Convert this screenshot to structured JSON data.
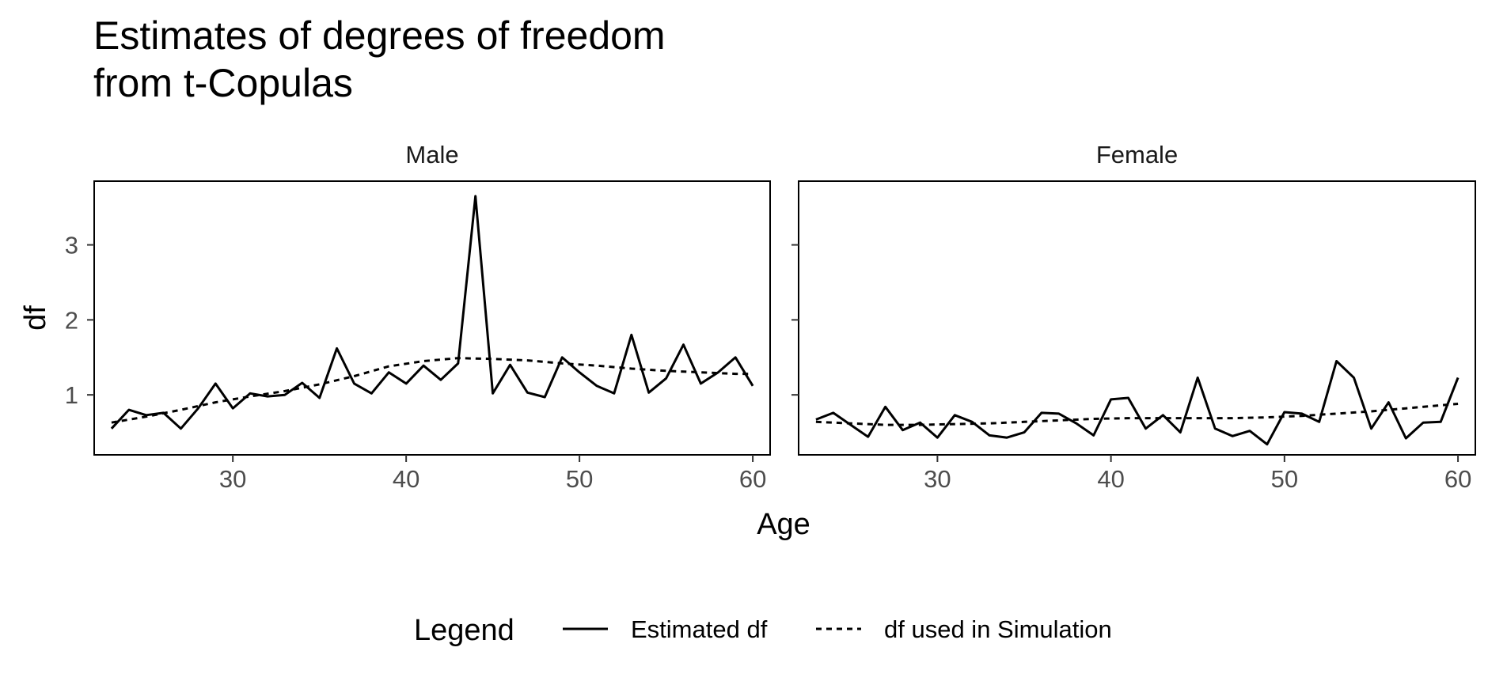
{
  "colors": {
    "line": "#000000",
    "panel_border": "#000000",
    "tick_label": "#4d4d4d",
    "background": "#ffffff"
  },
  "chart_data": {
    "type": "line",
    "title": "Estimates of degrees of freedom\nfrom t-Copulas",
    "xlabel": "Age",
    "ylabel": "df",
    "xlim": [
      22,
      61
    ],
    "ylim": [
      0.2,
      3.85
    ],
    "x_ticks": [
      30,
      40,
      50,
      60
    ],
    "y_ticks": [
      1,
      2,
      3
    ],
    "grid": false,
    "legend": {
      "position": "bottom",
      "title": "Legend",
      "entries": [
        {
          "label": "Estimated df",
          "style": "solid"
        },
        {
          "label": "df used in Simulation",
          "style": "dashed"
        }
      ]
    },
    "panels": [
      {
        "label": "Male",
        "series": [
          {
            "name": "Estimated df",
            "style": "solid",
            "x": [
              23,
              24,
              25,
              26,
              27,
              28,
              29,
              30,
              31,
              32,
              33,
              34,
              35,
              36,
              37,
              38,
              39,
              40,
              41,
              42,
              43,
              44,
              45,
              46,
              47,
              48,
              49,
              50,
              51,
              52,
              53,
              54,
              55,
              56,
              57,
              58,
              59,
              60
            ],
            "y": [
              0.55,
              0.8,
              0.73,
              0.76,
              0.55,
              0.82,
              1.15,
              0.82,
              1.02,
              0.98,
              1.0,
              1.16,
              0.96,
              1.62,
              1.15,
              1.02,
              1.3,
              1.15,
              1.39,
              1.2,
              1.42,
              3.65,
              1.02,
              1.4,
              1.03,
              0.97,
              1.5,
              1.3,
              1.12,
              1.02,
              1.8,
              1.03,
              1.22,
              1.67,
              1.15,
              1.3,
              1.5,
              1.12
            ]
          },
          {
            "name": "df used in Simulation",
            "style": "dashed",
            "x": [
              23,
              25,
              27,
              29,
              31,
              33,
              35,
              37,
              39,
              41,
              43,
              45,
              47,
              49,
              51,
              53,
              55,
              57,
              59,
              60
            ],
            "y": [
              0.63,
              0.71,
              0.8,
              0.9,
              0.98,
              1.05,
              1.14,
              1.25,
              1.38,
              1.45,
              1.49,
              1.48,
              1.46,
              1.42,
              1.39,
              1.35,
              1.32,
              1.3,
              1.28,
              1.28
            ]
          }
        ]
      },
      {
        "label": "Female",
        "series": [
          {
            "name": "Estimated df",
            "style": "solid",
            "x": [
              23,
              24,
              25,
              26,
              27,
              28,
              29,
              30,
              31,
              32,
              33,
              34,
              35,
              36,
              37,
              38,
              39,
              40,
              41,
              42,
              43,
              44,
              45,
              46,
              47,
              48,
              49,
              50,
              51,
              52,
              53,
              54,
              55,
              56,
              57,
              58,
              59,
              60
            ],
            "y": [
              0.67,
              0.76,
              0.6,
              0.44,
              0.84,
              0.53,
              0.63,
              0.43,
              0.73,
              0.64,
              0.46,
              0.43,
              0.5,
              0.76,
              0.75,
              0.62,
              0.46,
              0.94,
              0.96,
              0.55,
              0.73,
              0.5,
              1.23,
              0.55,
              0.45,
              0.52,
              0.34,
              0.77,
              0.75,
              0.64,
              1.45,
              1.23,
              0.55,
              0.9,
              0.42,
              0.63,
              0.64,
              1.23
            ]
          },
          {
            "name": "df used in Simulation",
            "style": "dashed",
            "x": [
              23,
              25,
              27,
              29,
              31,
              33,
              35,
              37,
              39,
              41,
              43,
              45,
              47,
              49,
              51,
              53,
              55,
              57,
              59,
              60
            ],
            "y": [
              0.64,
              0.62,
              0.6,
              0.6,
              0.61,
              0.62,
              0.64,
              0.66,
              0.68,
              0.69,
              0.69,
              0.69,
              0.69,
              0.7,
              0.72,
              0.75,
              0.78,
              0.82,
              0.86,
              0.88
            ]
          }
        ]
      }
    ]
  }
}
